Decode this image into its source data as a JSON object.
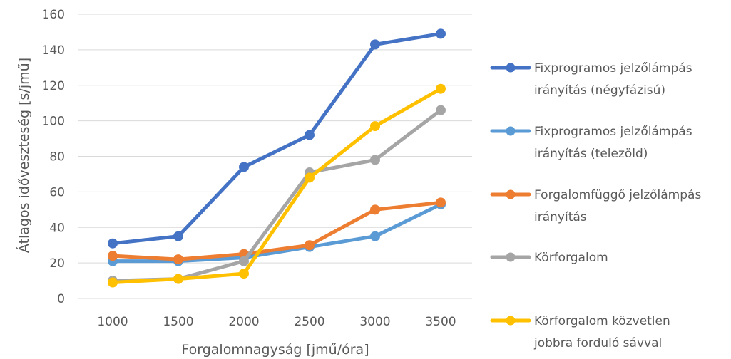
{
  "chart_data": {
    "type": "line",
    "title": "",
    "xlabel": "Forgalomnagyság [jmű/óra]",
    "ylabel": "Átlagos időveszteség [s/jmű]",
    "x": [
      1000,
      1500,
      2000,
      2500,
      3000,
      3500
    ],
    "ylim": [
      0,
      160
    ],
    "yticks": [
      0,
      20,
      40,
      60,
      80,
      100,
      120,
      140,
      160
    ],
    "grid": "horizontal",
    "legend_position": "right",
    "series": [
      {
        "name": "Fixprogramos jelzőlámpás irányítás (négyfázisú)",
        "legend_lines": [
          "Fixprogramos jelzőlámpás",
          "irányítás (négyfázisú)"
        ],
        "color": "#4472C4",
        "values": [
          31,
          35,
          74,
          92,
          143,
          149
        ]
      },
      {
        "name": "Fixprogramos jelzőlámpás irányítás (telezöld)",
        "legend_lines": [
          "Fixprogramos jelzőlámpás",
          "irányítás (telezöld)"
        ],
        "color": "#5B9BD5",
        "values": [
          21,
          21,
          23,
          29,
          35,
          53
        ]
      },
      {
        "name": "Forgalomfüggő jelzőlámpás irányítás",
        "legend_lines": [
          "Forgalomfüggő jelzőlámpás",
          "irányítás"
        ],
        "color": "#ED7D31",
        "values": [
          24,
          22,
          25,
          30,
          50,
          54
        ]
      },
      {
        "name": "Körforgalom",
        "legend_lines": [
          "Körforgalom"
        ],
        "color": "#A5A5A5",
        "values": [
          10,
          11,
          21,
          71,
          78,
          106
        ]
      },
      {
        "name": "Körforgalom közvetlen jobbra forduló sávval",
        "legend_lines": [
          "Körforgalom közvetlen",
          "jobbra forduló sávval"
        ],
        "color": "#FFC000",
        "values": [
          9,
          11,
          14,
          68,
          97,
          118
        ]
      }
    ]
  }
}
